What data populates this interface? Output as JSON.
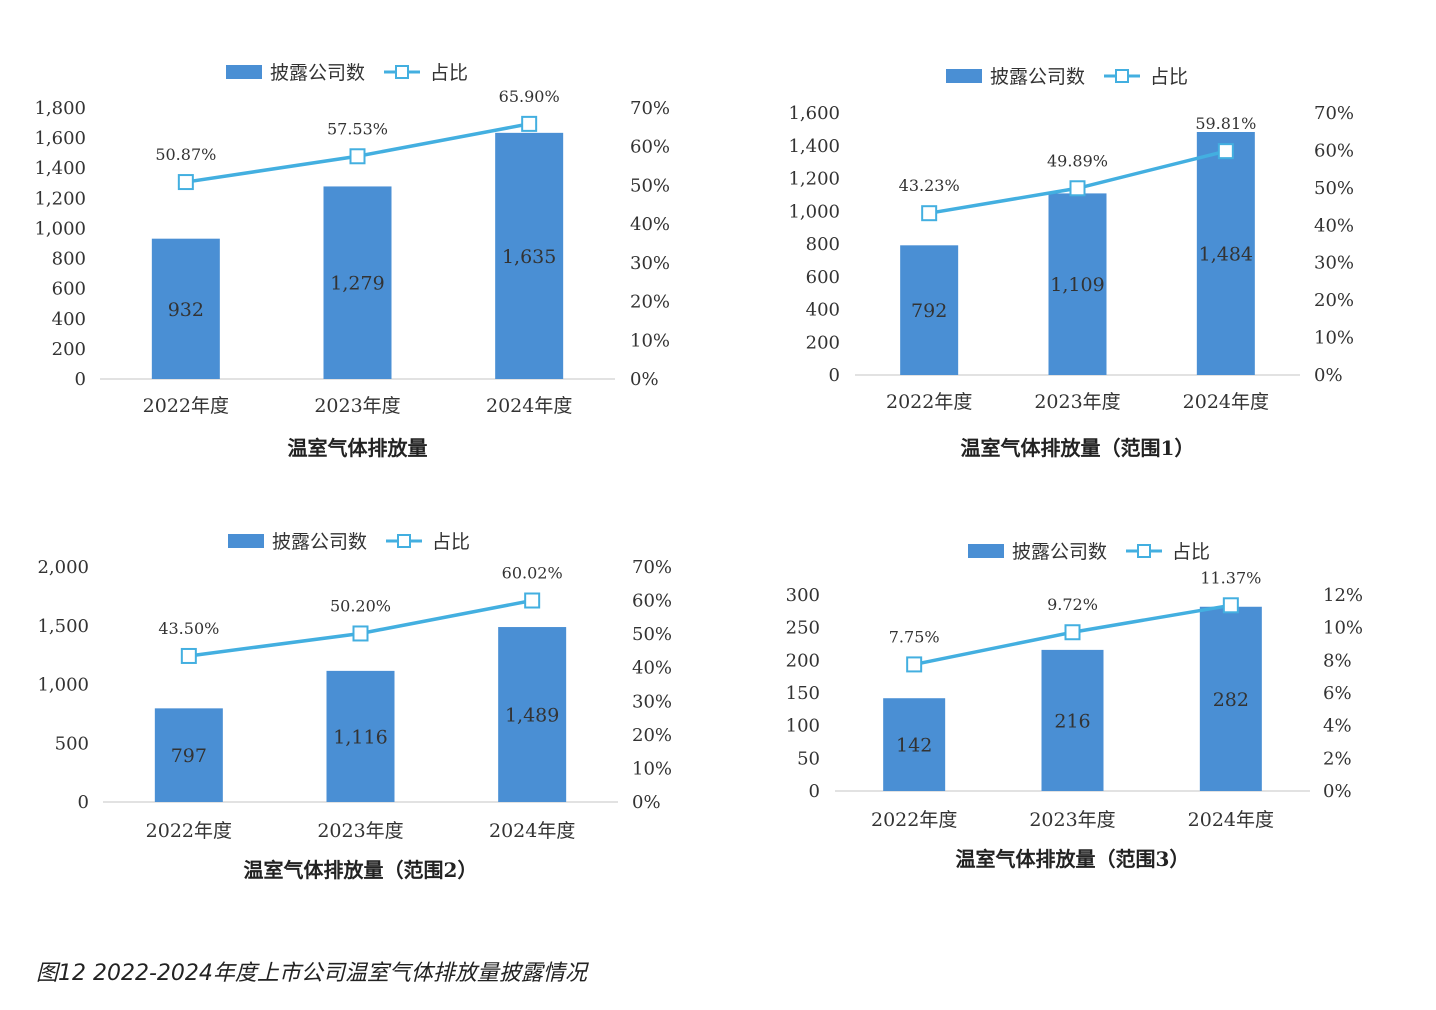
{
  "legend": {
    "bar_label": "披露公司数",
    "line_label": "占比"
  },
  "colors": {
    "bar": "#4a8fd4",
    "line": "#43afe0",
    "marker_fill": "#ffffff",
    "axis": "#d9d9d9"
  },
  "caption": "图12 2022-2024年度上市公司温室气体排放量披露情况",
  "chart_data": [
    {
      "type": "bar",
      "title": "温室气体排放量",
      "categories": [
        "2022年度",
        "2023年度",
        "2024年度"
      ],
      "series": [
        {
          "name": "披露公司数",
          "type": "bar",
          "axis": "left",
          "values": [
            932,
            1279,
            1635
          ],
          "labels": [
            "932",
            "1,279",
            "1,635"
          ]
        },
        {
          "name": "占比",
          "type": "line",
          "axis": "right",
          "values": [
            50.87,
            57.53,
            65.9
          ],
          "labels": [
            "50.87%",
            "57.53%",
            "65.90%"
          ]
        }
      ],
      "ylim": [
        0,
        1800
      ],
      "y_ticks": [
        0,
        200,
        400,
        600,
        800,
        1000,
        1200,
        1400,
        1600,
        1800
      ],
      "y_tick_labels": [
        "0",
        "200",
        "400",
        "600",
        "800",
        "1,000",
        "1,200",
        "1,400",
        "1,600",
        "1,800"
      ],
      "y2lim": [
        0,
        70
      ],
      "y2_ticks": [
        0,
        10,
        20,
        30,
        40,
        50,
        60,
        70
      ],
      "y2_tick_labels": [
        "0%",
        "10%",
        "20%",
        "30%",
        "40%",
        "50%",
        "60%",
        "70%"
      ],
      "legend_position": "top",
      "grid": false
    },
    {
      "type": "bar",
      "title": "温室气体排放量（范围1）",
      "categories": [
        "2022年度",
        "2023年度",
        "2024年度"
      ],
      "series": [
        {
          "name": "披露公司数",
          "type": "bar",
          "axis": "left",
          "values": [
            792,
            1109,
            1484
          ],
          "labels": [
            "792",
            "1,109",
            "1,484"
          ]
        },
        {
          "name": "占比",
          "type": "line",
          "axis": "right",
          "values": [
            43.23,
            49.89,
            59.81
          ],
          "labels": [
            "43.23%",
            "49.89%",
            "59.81%"
          ]
        }
      ],
      "ylim": [
        0,
        1600
      ],
      "y_ticks": [
        0,
        200,
        400,
        600,
        800,
        1000,
        1200,
        1400,
        1600
      ],
      "y_tick_labels": [
        "0",
        "200",
        "400",
        "600",
        "800",
        "1,000",
        "1,200",
        "1,400",
        "1,600"
      ],
      "y2lim": [
        0,
        70
      ],
      "y2_ticks": [
        0,
        10,
        20,
        30,
        40,
        50,
        60,
        70
      ],
      "y2_tick_labels": [
        "0%",
        "10%",
        "20%",
        "30%",
        "40%",
        "50%",
        "60%",
        "70%"
      ],
      "legend_position": "top",
      "grid": false
    },
    {
      "type": "bar",
      "title": "温室气体排放量（范围2）",
      "categories": [
        "2022年度",
        "2023年度",
        "2024年度"
      ],
      "series": [
        {
          "name": "披露公司数",
          "type": "bar",
          "axis": "left",
          "values": [
            797,
            1116,
            1489
          ],
          "labels": [
            "797",
            "1,116",
            "1,489"
          ]
        },
        {
          "name": "占比",
          "type": "line",
          "axis": "right",
          "values": [
            43.5,
            50.2,
            60.02
          ],
          "labels": [
            "43.50%",
            "50.20%",
            "60.02%"
          ]
        }
      ],
      "ylim": [
        0,
        2000
      ],
      "y_ticks": [
        0,
        500,
        1000,
        1500,
        2000
      ],
      "y_tick_labels": [
        "0",
        "500",
        "1,000",
        "1,500",
        "2,000"
      ],
      "y2lim": [
        0,
        70
      ],
      "y2_ticks": [
        0,
        10,
        20,
        30,
        40,
        50,
        60,
        70
      ],
      "y2_tick_labels": [
        "0%",
        "10%",
        "20%",
        "30%",
        "40%",
        "50%",
        "60%",
        "70%"
      ],
      "legend_position": "top",
      "grid": false
    },
    {
      "type": "bar",
      "title": "温室气体排放量（范围3）",
      "categories": [
        "2022年度",
        "2023年度",
        "2024年度"
      ],
      "series": [
        {
          "name": "披露公司数",
          "type": "bar",
          "axis": "left",
          "values": [
            142,
            216,
            282
          ],
          "labels": [
            "142",
            "216",
            "282"
          ]
        },
        {
          "name": "占比",
          "type": "line",
          "axis": "right",
          "values": [
            7.75,
            9.72,
            11.37
          ],
          "labels": [
            "7.75%",
            "9.72%",
            "11.37%"
          ]
        }
      ],
      "ylim": [
        0,
        300
      ],
      "y_ticks": [
        0,
        50,
        100,
        150,
        200,
        250,
        300
      ],
      "y_tick_labels": [
        "0",
        "50",
        "100",
        "150",
        "200",
        "250",
        "300"
      ],
      "y2lim": [
        0,
        12
      ],
      "y2_ticks": [
        0,
        2,
        4,
        6,
        8,
        10,
        12
      ],
      "y2_tick_labels": [
        "0%",
        "2%",
        "4%",
        "6%",
        "8%",
        "10%",
        "12%"
      ],
      "legend_position": "top",
      "grid": false
    }
  ]
}
